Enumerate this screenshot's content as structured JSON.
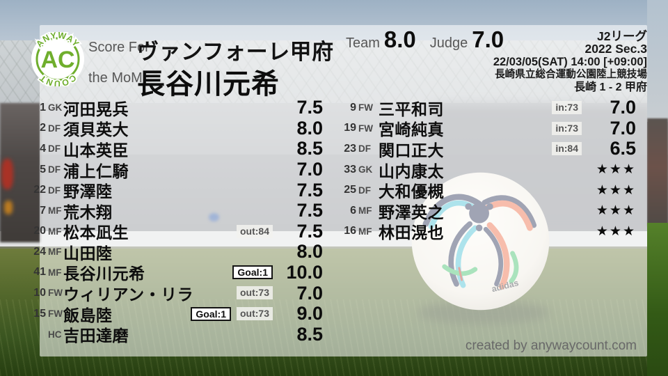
{
  "colors": {
    "logo_green": "#6fae2d",
    "text_dark": "#0e0e0e",
    "label_gray": "#575757",
    "badge_sub_bg": "#f0f0ed",
    "badge_goal_border": "#141414"
  },
  "logo": {
    "top": "ANYWAY",
    "center": "AC",
    "bottom": "COUNT"
  },
  "header": {
    "score_for_label": "Score For",
    "team_name": "ヴァンフォーレ甲府",
    "mom_label": "the MoM",
    "mom_name": "長谷川元希",
    "team_score_label": "Team",
    "team_score": "8.0",
    "judge_score_label": "Judge",
    "judge_score": "7.0",
    "meta": {
      "league": "J2リーグ",
      "season": "2022 Sec.3",
      "datetime": "22/03/05(SAT) 14:00 [+09:00]",
      "venue": "長崎県立総合運動公園陸上競技場",
      "result": "長崎 1 - 2 甲府"
    }
  },
  "starters": [
    {
      "num": "1",
      "pos": "GK",
      "name": "河田晃兵",
      "badges": [],
      "rating": "7.5",
      "stars": false
    },
    {
      "num": "2",
      "pos": "DF",
      "name": "須貝英大",
      "badges": [],
      "rating": "8.0",
      "stars": false
    },
    {
      "num": "4",
      "pos": "DF",
      "name": "山本英臣",
      "badges": [],
      "rating": "8.5",
      "stars": false
    },
    {
      "num": "5",
      "pos": "DF",
      "name": "浦上仁騎",
      "badges": [],
      "rating": "7.0",
      "stars": false
    },
    {
      "num": "22",
      "pos": "DF",
      "name": "野澤陸",
      "badges": [],
      "rating": "7.5",
      "stars": false
    },
    {
      "num": "7",
      "pos": "MF",
      "name": "荒木翔",
      "badges": [],
      "rating": "7.5",
      "stars": false
    },
    {
      "num": "20",
      "pos": "MF",
      "name": "松本凪生",
      "badges": [
        {
          "type": "sub",
          "label": "out:84"
        }
      ],
      "rating": "7.5",
      "stars": false
    },
    {
      "num": "24",
      "pos": "MF",
      "name": "山田陸",
      "badges": [],
      "rating": "8.0",
      "stars": false
    },
    {
      "num": "41",
      "pos": "MF",
      "name": "長谷川元希",
      "badges": [
        {
          "type": "goal",
          "label": "Goal:1"
        }
      ],
      "rating": "10.0",
      "stars": false
    },
    {
      "num": "10",
      "pos": "FW",
      "name": "ウィリアン・リラ",
      "badges": [
        {
          "type": "sub",
          "label": "out:73"
        }
      ],
      "rating": "7.0",
      "stars": false
    },
    {
      "num": "15",
      "pos": "FW",
      "name": "飯島陸",
      "badges": [
        {
          "type": "goal",
          "label": "Goal:1"
        },
        {
          "type": "sub",
          "label": "out:73"
        }
      ],
      "rating": "9.0",
      "stars": false
    },
    {
      "num": "",
      "pos": "HC",
      "name": "吉田達磨",
      "badges": [],
      "rating": "8.5",
      "stars": false
    }
  ],
  "subs": [
    {
      "num": "9",
      "pos": "FW",
      "name": "三平和司",
      "badges": [
        {
          "type": "sub",
          "label": "in:73"
        }
      ],
      "rating": "7.0",
      "stars": false
    },
    {
      "num": "19",
      "pos": "FW",
      "name": "宮崎純真",
      "badges": [
        {
          "type": "sub",
          "label": "in:73"
        }
      ],
      "rating": "7.0",
      "stars": false
    },
    {
      "num": "23",
      "pos": "DF",
      "name": "関口正大",
      "badges": [
        {
          "type": "sub",
          "label": "in:84"
        }
      ],
      "rating": "6.5",
      "stars": false
    },
    {
      "num": "33",
      "pos": "GK",
      "name": "山内康太",
      "badges": [],
      "rating": "★★★",
      "stars": true
    },
    {
      "num": "25",
      "pos": "DF",
      "name": "大和優槻",
      "badges": [],
      "rating": "★★★",
      "stars": true
    },
    {
      "num": "6",
      "pos": "MF",
      "name": "野澤英之",
      "badges": [],
      "rating": "★★★",
      "stars": true
    },
    {
      "num": "16",
      "pos": "MF",
      "name": "林田滉也",
      "badges": [],
      "rating": "★★★",
      "stars": true
    }
  ],
  "footer": {
    "credit": "created by anywaycount.com"
  }
}
